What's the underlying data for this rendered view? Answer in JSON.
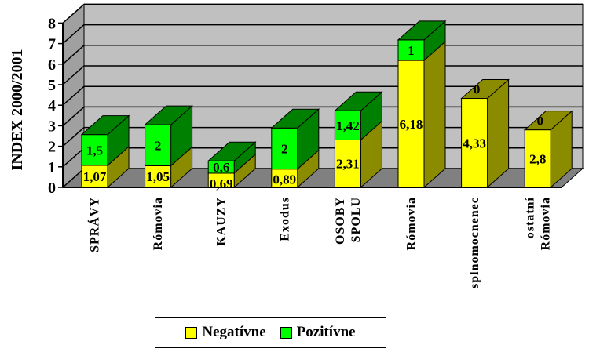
{
  "chart_data": {
    "type": "bar",
    "stacked": true,
    "three_d": true,
    "ylabel": "INDEX 2000/2001",
    "ylim": [
      0,
      8
    ],
    "yticks": [
      "0",
      "1",
      "2",
      "3",
      "4",
      "5",
      "6",
      "7",
      "8"
    ],
    "grid": true,
    "legend_position": "bottom",
    "categories": [
      [
        "SPRÁVY"
      ],
      [
        "Rómovia"
      ],
      [
        "KAUZY"
      ],
      [
        "Exodus"
      ],
      [
        "OSOBY",
        "SPOLU"
      ],
      [
        "Rómovia"
      ],
      [
        "splnomocnenec"
      ],
      [
        "ostatní",
        "Rómovia"
      ]
    ],
    "series": [
      {
        "name": "Negatívne",
        "color": "#ffff00",
        "side_color": "#8b8b00",
        "values": [
          1.07,
          1.05,
          0.69,
          0.89,
          2.31,
          6.18,
          4.33,
          2.8
        ],
        "labels": [
          "1,07",
          "1,05",
          "0,69",
          "0,89",
          "2,31",
          "6,18",
          "4,33",
          "2,8"
        ]
      },
      {
        "name": "Pozitívne",
        "color": "#00ff00",
        "side_color": "#008000",
        "values": [
          1.5,
          2,
          0.6,
          2,
          1.42,
          1,
          0,
          0
        ],
        "labels": [
          "1,5",
          "2",
          "0,6",
          "2",
          "1,42",
          "1",
          "0",
          "0"
        ]
      }
    ]
  }
}
